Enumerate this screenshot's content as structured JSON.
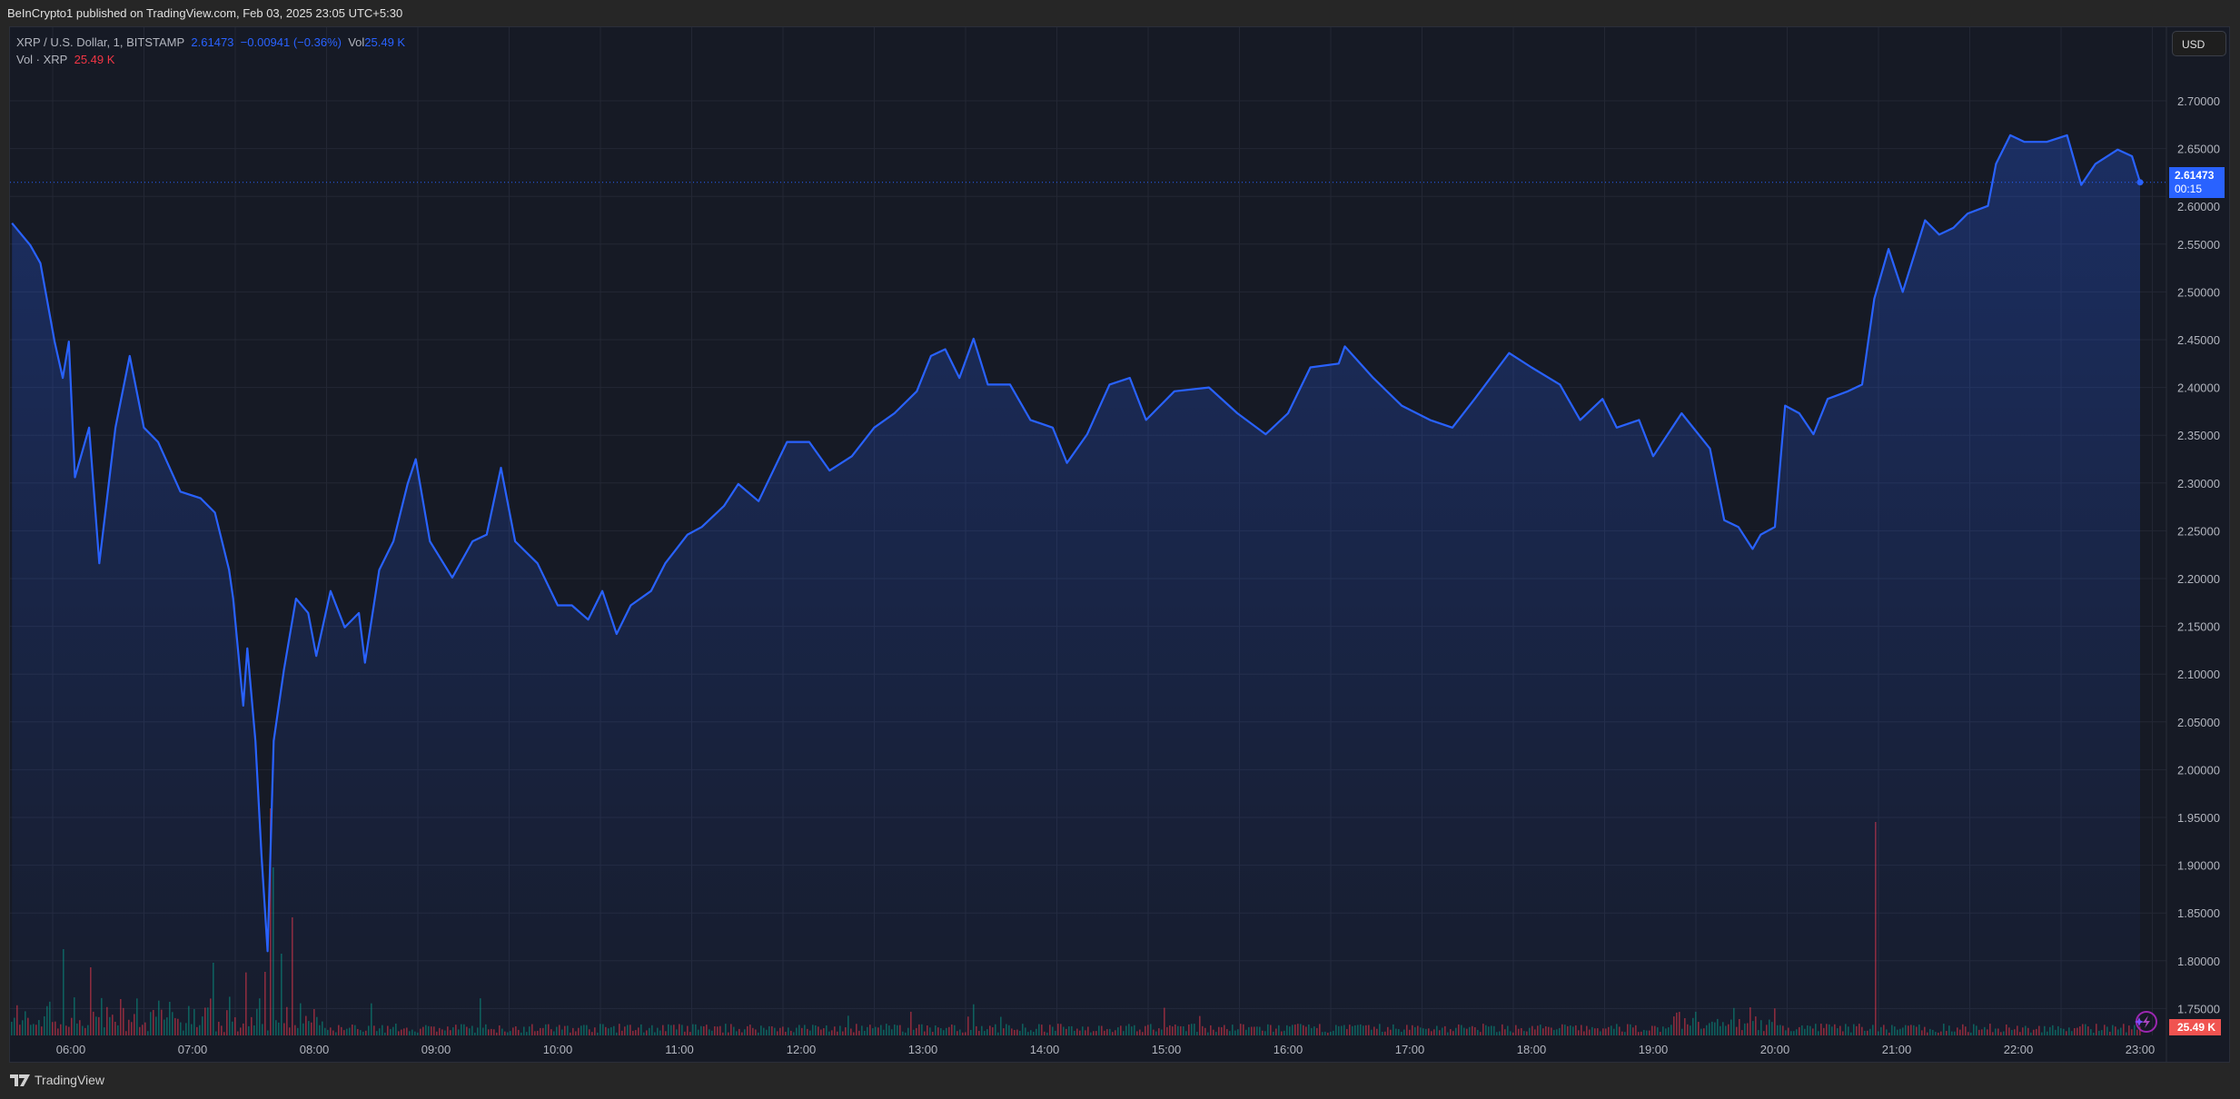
{
  "header": {
    "published": "BeInCrypto1 published on TradingView.com, Feb 03, 2025 23:05 UTC+5:30"
  },
  "legend": {
    "symbol": "XRP / U.S. Dollar, 1, BITSTAMP",
    "last": "2.61473",
    "change": "−0.00941 (−0.36%)",
    "vol_label": "Vol",
    "vol_value": "25.49 K",
    "vol_study": "Vol · XRP",
    "vol_study_value": "25.49 K"
  },
  "currency_button": "USD",
  "last_price_label": {
    "price": "2.61473",
    "countdown": "00:15"
  },
  "volume_label": "25.49 K",
  "footer": {
    "brand": "TradingView"
  },
  "colors": {
    "line": "#2962ff",
    "up": "#089981",
    "down": "#f23645",
    "background": "#161a25"
  },
  "chart_data": {
    "type": "area",
    "series": [
      {
        "name": "XRP / U.S. Dollar",
        "points": [
          [
            "05:31",
            2.572
          ],
          [
            "05:40",
            2.549
          ],
          [
            "05:45",
            2.53
          ],
          [
            "05:52",
            2.448
          ],
          [
            "05:56",
            2.41
          ],
          [
            "05:59",
            2.448
          ],
          [
            "06:02",
            2.306
          ],
          [
            "06:09",
            2.358
          ],
          [
            "06:14",
            2.216
          ],
          [
            "06:22",
            2.358
          ],
          [
            "06:29",
            2.433
          ],
          [
            "06:36",
            2.358
          ],
          [
            "06:43",
            2.343
          ],
          [
            "06:54",
            2.291
          ],
          [
            "07:04",
            2.284
          ],
          [
            "07:11",
            2.269
          ],
          [
            "07:18",
            2.209
          ],
          [
            "07:20",
            2.179
          ],
          [
            "07:25",
            2.067
          ],
          [
            "07:27",
            2.127
          ],
          [
            "07:31",
            2.03
          ],
          [
            "07:34",
            1.91
          ],
          [
            "07:37",
            1.81
          ],
          [
            "07:40",
            2.03
          ],
          [
            "07:45",
            2.104
          ],
          [
            "07:51",
            2.179
          ],
          [
            "07:57",
            2.164
          ],
          [
            "08:01",
            2.119
          ],
          [
            "08:08",
            2.187
          ],
          [
            "08:15",
            2.149
          ],
          [
            "08:22",
            2.164
          ],
          [
            "08:25",
            2.112
          ],
          [
            "08:32",
            2.209
          ],
          [
            "08:39",
            2.239
          ],
          [
            "08:46",
            2.299
          ],
          [
            "08:50",
            2.325
          ],
          [
            "08:57",
            2.239
          ],
          [
            "09:08",
            2.201
          ],
          [
            "09:18",
            2.239
          ],
          [
            "09:25",
            2.246
          ],
          [
            "09:32",
            2.316
          ],
          [
            "09:39",
            2.239
          ],
          [
            "09:50",
            2.216
          ],
          [
            "10:00",
            2.172
          ],
          [
            "10:07",
            2.172
          ],
          [
            "10:15",
            2.157
          ],
          [
            "10:22",
            2.187
          ],
          [
            "10:29",
            2.142
          ],
          [
            "10:36",
            2.172
          ],
          [
            "10:46",
            2.187
          ],
          [
            "10:53",
            2.216
          ],
          [
            "11:04",
            2.246
          ],
          [
            "11:11",
            2.254
          ],
          [
            "11:22",
            2.276
          ],
          [
            "11:29",
            2.299
          ],
          [
            "11:39",
            2.281
          ],
          [
            "11:53",
            2.343
          ],
          [
            "12:04",
            2.343
          ],
          [
            "12:14",
            2.313
          ],
          [
            "12:25",
            2.328
          ],
          [
            "12:36",
            2.358
          ],
          [
            "12:46",
            2.373
          ],
          [
            "12:57",
            2.396
          ],
          [
            "13:04",
            2.433
          ],
          [
            "13:11",
            2.44
          ],
          [
            "13:18",
            2.41
          ],
          [
            "13:25",
            2.451
          ],
          [
            "13:32",
            2.403
          ],
          [
            "13:43",
            2.403
          ],
          [
            "13:53",
            2.366
          ],
          [
            "14:04",
            2.358
          ],
          [
            "14:11",
            2.321
          ],
          [
            "14:21",
            2.351
          ],
          [
            "14:32",
            2.403
          ],
          [
            "14:42",
            2.41
          ],
          [
            "14:50",
            2.366
          ],
          [
            "15:04",
            2.396
          ],
          [
            "15:21",
            2.4
          ],
          [
            "15:35",
            2.373
          ],
          [
            "15:49",
            2.351
          ],
          [
            "16:00",
            2.373
          ],
          [
            "16:11",
            2.421
          ],
          [
            "16:25",
            2.425
          ],
          [
            "16:28",
            2.443
          ],
          [
            "16:42",
            2.41
          ],
          [
            "16:56",
            2.381
          ],
          [
            "17:10",
            2.366
          ],
          [
            "17:21",
            2.358
          ],
          [
            "17:32",
            2.388
          ],
          [
            "17:49",
            2.436
          ],
          [
            "18:00",
            2.421
          ],
          [
            "18:14",
            2.403
          ],
          [
            "18:24",
            2.366
          ],
          [
            "18:35",
            2.388
          ],
          [
            "18:42",
            2.358
          ],
          [
            "18:53",
            2.366
          ],
          [
            "19:00",
            2.328
          ],
          [
            "19:14",
            2.373
          ],
          [
            "19:28",
            2.336
          ],
          [
            "19:35",
            2.261
          ],
          [
            "19:42",
            2.254
          ],
          [
            "19:49",
            2.231
          ],
          [
            "19:53",
            2.246
          ],
          [
            "20:00",
            2.254
          ],
          [
            "20:05",
            2.381
          ],
          [
            "20:12",
            2.373
          ],
          [
            "20:19",
            2.351
          ],
          [
            "20:26",
            2.388
          ],
          [
            "20:36",
            2.396
          ],
          [
            "20:43",
            2.403
          ],
          [
            "20:49",
            2.493
          ],
          [
            "20:56",
            2.545
          ],
          [
            "21:03",
            2.5
          ],
          [
            "21:14",
            2.575
          ],
          [
            "21:21",
            2.56
          ],
          [
            "21:28",
            2.567
          ],
          [
            "21:35",
            2.582
          ],
          [
            "21:45",
            2.59
          ],
          [
            "21:49",
            2.634
          ],
          [
            "21:56",
            2.664
          ],
          [
            "22:03",
            2.657
          ],
          [
            "22:14",
            2.657
          ],
          [
            "22:24",
            2.664
          ],
          [
            "22:31",
            2.612
          ],
          [
            "22:38",
            2.634
          ],
          [
            "22:49",
            2.649
          ],
          [
            "22:56",
            2.642
          ],
          [
            "23:00",
            2.61473
          ]
        ]
      }
    ],
    "y_ticks": [
      "2.70000",
      "2.65000",
      "2.60000",
      "2.55000",
      "2.50000",
      "2.45000",
      "2.40000",
      "2.35000",
      "2.30000",
      "2.25000",
      "2.20000",
      "2.15000",
      "2.10000",
      "2.05000",
      "2.00000",
      "1.95000",
      "1.90000",
      "1.85000",
      "1.80000",
      "1.75000"
    ],
    "x_ticks": [
      "06:00",
      "07:00",
      "08:00",
      "09:00",
      "10:00",
      "11:00",
      "12:00",
      "13:00",
      "14:00",
      "15:00",
      "16:00",
      "17:00",
      "18:00",
      "19:00",
      "20:00",
      "21:00",
      "22:00",
      "23:00"
    ],
    "ylim": [
      1.75,
      2.7
    ],
    "grid": true,
    "last_value": 2.61473
  }
}
